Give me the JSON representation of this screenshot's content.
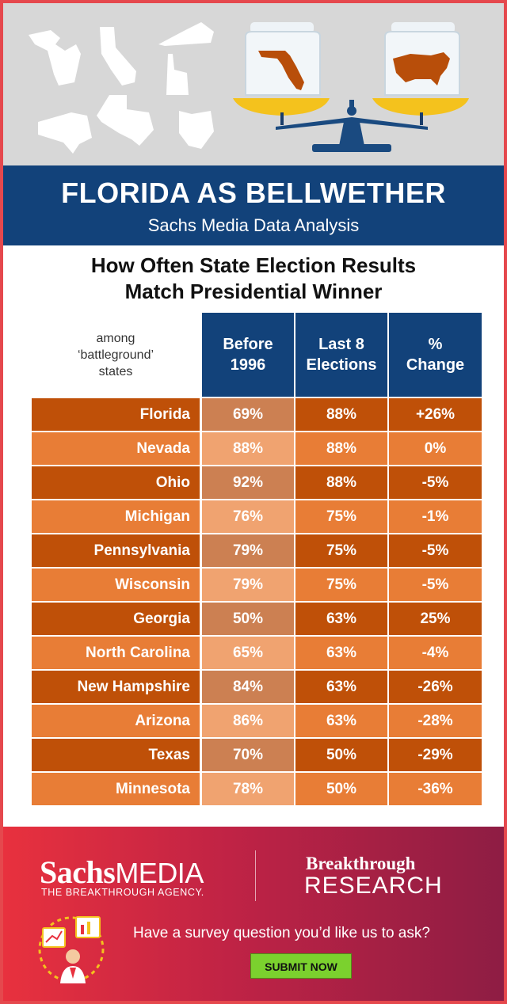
{
  "banner": {
    "title": "FLORIDA AS BELLWETHER",
    "subtitle": "Sachs Media Data Analysis"
  },
  "chart_data": {
    "type": "table",
    "title_line1": "How Often State Election Results",
    "title_line2": "Match Presidential Winner",
    "note": "among\n‘battleground’\nstates",
    "columns": [
      "Before\n1996",
      "Last 8\nElections",
      "%\nChange"
    ],
    "rows": [
      {
        "state": "Florida",
        "before": "69%",
        "last8": "88%",
        "change": "+26%"
      },
      {
        "state": "Nevada",
        "before": "88%",
        "last8": "88%",
        "change": "0%"
      },
      {
        "state": "Ohio",
        "before": "92%",
        "last8": "88%",
        "change": "-5%"
      },
      {
        "state": "Michigan",
        "before": "76%",
        "last8": "75%",
        "change": "-1%"
      },
      {
        "state": "Pennsylvania",
        "before": "79%",
        "last8": "75%",
        "change": "-5%"
      },
      {
        "state": "Wisconsin",
        "before": "79%",
        "last8": "75%",
        "change": "-5%"
      },
      {
        "state": "Georgia",
        "before": "50%",
        "last8": "63%",
        "change": "25%"
      },
      {
        "state": "North Carolina",
        "before": "65%",
        "last8": "63%",
        "change": "-4%"
      },
      {
        "state": "New Hampshire",
        "before": "84%",
        "last8": "63%",
        "change": "-26%"
      },
      {
        "state": "Arizona",
        "before": "86%",
        "last8": "63%",
        "change": "-28%"
      },
      {
        "state": "Texas",
        "before": "70%",
        "last8": "50%",
        "change": "-29%"
      },
      {
        "state": "Minnesota",
        "before": "78%",
        "last8": "50%",
        "change": "-36%"
      }
    ],
    "colors": {
      "header": "#12427a",
      "dark_row": "#bf5008",
      "light_row": "#e87d36",
      "dark_row_before": "#cc8052",
      "light_row_before": "#f0a370"
    }
  },
  "footer": {
    "brand_serif": "Sachs",
    "brand_sans": "MEDIA",
    "agency": "THE BREAKTHROUGH AGENCY.",
    "bt_line1": "Breakthrough",
    "bt_line2": "RESEARCH",
    "question": "Have a survey question you’d like us to ask?",
    "submit_label": "SUBMIT NOW"
  }
}
